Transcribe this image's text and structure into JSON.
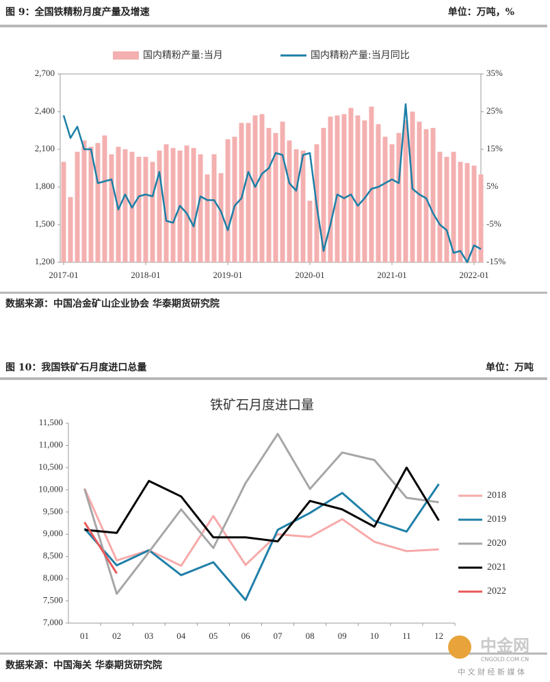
{
  "chart_data": [
    {
      "type": "combo",
      "title": "图 9：全国铁精粉月度产量及增速",
      "unit": "单位：万吨，%",
      "source": "数据来源：中国冶金矿山企业协会 华泰期货研究院",
      "categories": [
        "2017-01",
        null,
        null,
        null,
        null,
        null,
        null,
        null,
        null,
        null,
        null,
        null,
        "2018-01",
        null,
        null,
        null,
        null,
        null,
        null,
        null,
        null,
        null,
        null,
        null,
        "2019-01",
        null,
        null,
        null,
        null,
        null,
        null,
        null,
        null,
        null,
        null,
        null,
        "2020-01",
        null,
        null,
        null,
        null,
        null,
        null,
        null,
        null,
        null,
        null,
        null,
        "2021-01",
        null,
        null,
        null,
        null,
        null,
        null,
        null,
        null,
        null,
        null,
        null,
        "2022-01",
        null
      ],
      "series": [
        {
          "name": "国内精粉产量:当月",
          "type": "bar",
          "color": "#f4b0b0",
          "values": [
            2000,
            1720,
            2080,
            2170,
            2120,
            2150,
            2210,
            2060,
            2120,
            2100,
            2080,
            2040,
            2040,
            2000,
            2090,
            2140,
            2110,
            2090,
            2130,
            2110,
            2060,
            1900,
            2060,
            1910,
            2180,
            2200,
            2310,
            2310,
            2370,
            2380,
            2270,
            2230,
            2320,
            2170,
            2100,
            2090,
            1690,
            2140,
            2270,
            2360,
            2370,
            2380,
            2430,
            2370,
            2330,
            2440,
            2300,
            2200,
            2140,
            2230,
            2330,
            2400,
            2320,
            2260,
            2270,
            2080,
            2040,
            2080,
            2000,
            1990,
            1970,
            1900
          ]
        },
        {
          "name": "国内精粉产量:当月同比",
          "type": "line",
          "axis": "y2",
          "color": "#1a7fa6",
          "values": [
            24,
            18,
            21,
            15,
            15,
            6,
            6.5,
            7,
            -1,
            3,
            -0.5,
            2.5,
            3,
            2.5,
            9,
            -4,
            -4.5,
            0,
            -2,
            -5.5,
            2.5,
            1.5,
            1.5,
            -1.5,
            -6.5,
            0,
            2,
            9,
            5,
            8.5,
            10,
            14,
            13.5,
            6,
            4,
            13.5,
            14,
            0,
            -12,
            -5,
            3,
            2,
            3,
            0,
            2,
            4.5,
            5,
            6,
            7,
            6,
            27,
            4.5,
            3,
            2,
            -2,
            -5,
            -6.5,
            -12.5,
            -12,
            -15,
            -10.5,
            -11.5
          ]
        }
      ],
      "ylim": [
        1200,
        2700
      ],
      "yticks": [
        {
          "value": 1200,
          "label": "1,200"
        },
        {
          "value": 1500,
          "label": "1,500"
        },
        {
          "value": 1800,
          "label": "1,800"
        },
        {
          "value": 2100,
          "label": "2,100"
        },
        {
          "value": 2400,
          "label": "2,400"
        },
        {
          "value": 2700,
          "label": "2,700"
        }
      ],
      "y2lim": [
        -15,
        35
      ],
      "y2ticks": [
        {
          "value": -15,
          "label": "-15%"
        },
        {
          "value": -5,
          "label": "-5%"
        },
        {
          "value": 5,
          "label": "5%"
        },
        {
          "value": 15,
          "label": "15%"
        },
        {
          "value": 25,
          "label": "25%"
        },
        {
          "value": 35,
          "label": "35%"
        }
      ],
      "legend": "top"
    },
    {
      "type": "line",
      "title": "铁矿石月度进口量",
      "header": "图 10：我国铁矿石月度进口总量",
      "unit": "单位：万吨",
      "source": "数据来源：中国海关 华泰期货研究院",
      "categories": [
        "01",
        "02",
        "03",
        "04",
        "05",
        "06",
        "07",
        "08",
        "09",
        "10",
        "11",
        "12"
      ],
      "series": [
        {
          "name": "2018",
          "color": "#f7a9a9",
          "values": [
            10030,
            8410,
            8640,
            8290,
            9410,
            8310,
            9000,
            8940,
            9340,
            8830,
            8620,
            8660
          ]
        },
        {
          "name": "2019",
          "color": "#1f7fa8",
          "values": [
            9130,
            8300,
            8640,
            8080,
            8370,
            7520,
            9100,
            9480,
            9930,
            9300,
            9060,
            10130
          ]
        },
        {
          "name": "2020",
          "color": "#a6a6a6",
          "values": [
            10020,
            7660,
            8600,
            9560,
            8690,
            10150,
            11260,
            10020,
            10840,
            10670,
            9820,
            9720
          ]
        },
        {
          "name": "2021",
          "color": "#000000",
          "values": [
            9100,
            9030,
            10200,
            9850,
            8930,
            8930,
            8840,
            9750,
            9560,
            9170,
            10500,
            9310
          ]
        },
        {
          "name": "2022",
          "color": "#e8585a",
          "values": [
            9270,
            8120,
            null,
            null,
            null,
            null,
            null,
            null,
            null,
            null,
            null,
            null
          ]
        }
      ],
      "ylim": [
        7000,
        11500
      ],
      "yticks": [
        {
          "value": 7000,
          "label": "7,000"
        },
        {
          "value": 7500,
          "label": "7,500"
        },
        {
          "value": 8000,
          "label": "8,000"
        },
        {
          "value": 8500,
          "label": "8,500"
        },
        {
          "value": 9000,
          "label": "9,000"
        },
        {
          "value": 9500,
          "label": "9,500"
        },
        {
          "value": 10000,
          "label": "10,000"
        },
        {
          "value": 10500,
          "label": "10,500"
        },
        {
          "value": 11000,
          "label": "11,000"
        },
        {
          "value": 11500,
          "label": "11,500"
        }
      ],
      "legend": "right"
    }
  ],
  "watermark": {
    "logo": "中金网",
    "site": "CNGOLD.COM.CN",
    "tagline": "中 文 财 经 新 媒 体"
  }
}
